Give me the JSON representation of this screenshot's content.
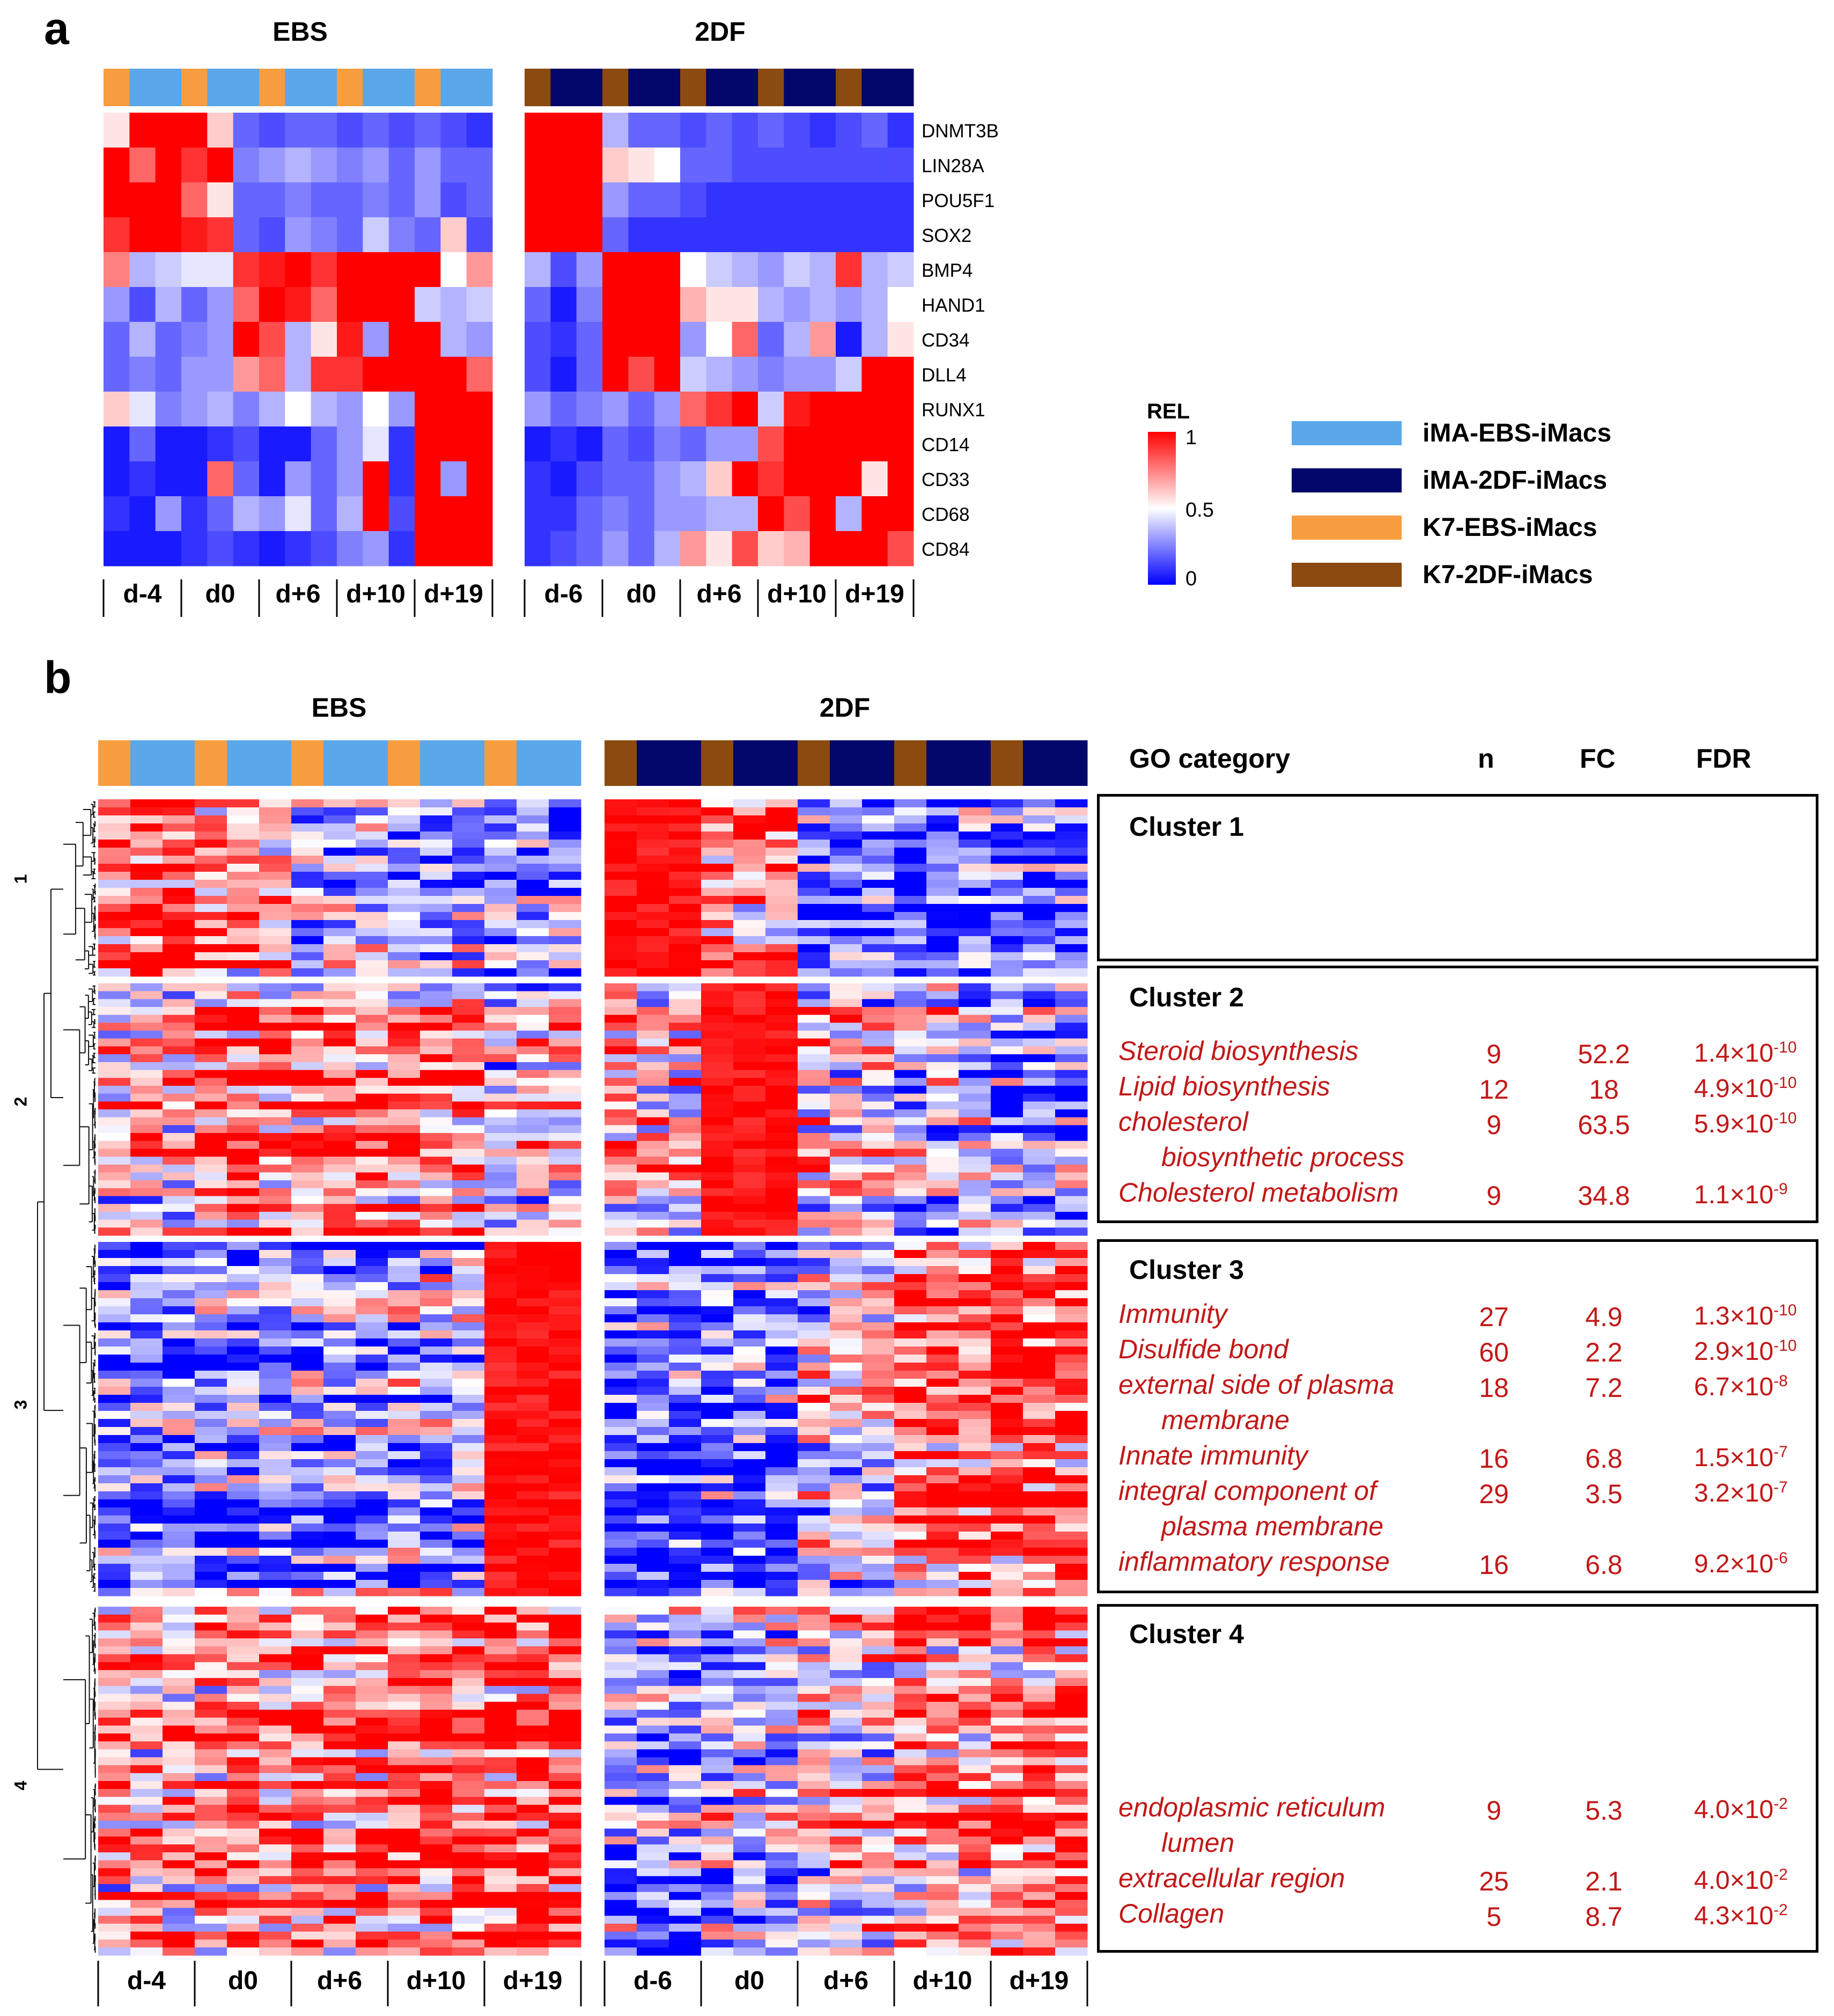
{
  "panel_a": {
    "letter": "a",
    "titles": {
      "ebs": "EBS",
      "twodf": "2DF"
    },
    "ebs_ticks": [
      "d-4",
      "d0",
      "d+6",
      "d+10",
      "d+19"
    ],
    "twodf_ticks": [
      "d-6",
      "d0",
      "d+6",
      "d+10",
      "d+19"
    ]
  },
  "panel_b": {
    "letter": "b",
    "titles": {
      "ebs": "EBS",
      "twodf": "2DF"
    },
    "ebs_ticks": [
      "d-4",
      "d0",
      "d+6",
      "d+10",
      "d+19"
    ],
    "twodf_ticks": [
      "d-6",
      "d0",
      "d+6",
      "d+10",
      "d+19"
    ],
    "cluster_labels": [
      "1",
      "2",
      "3",
      "4"
    ]
  },
  "colorbar": {
    "title": "REL",
    "ticks": [
      "1",
      "0.5",
      "0"
    ],
    "colors": [
      "#ff0000",
      "#ffffff",
      "#0000ff"
    ]
  },
  "legend": [
    {
      "label": "iMA-EBS-iMacs",
      "color": "#5aa7ea"
    },
    {
      "label": "iMA-2DF-iMacs",
      "color": "#03066a"
    },
    {
      "label": "K7-EBS-iMacs",
      "color": "#f89d40"
    },
    {
      "label": "K7-2DF-iMacs",
      "color": "#8b4a10"
    }
  ],
  "go_table": {
    "headers": {
      "category": "GO category",
      "n": "n",
      "fc": "FC",
      "fdr": "FDR"
    },
    "clusters": [
      {
        "title": "Cluster 1",
        "terms": []
      },
      {
        "title": "Cluster 2",
        "terms": [
          {
            "name": "Steroid biosynthesis",
            "n": "9",
            "fc": "52.2",
            "fdr_base": "1.4",
            "fdr_times": "×10",
            "fdr_exp": "-10"
          },
          {
            "name": "Lipid biosynthesis",
            "n": "12",
            "fc": "18",
            "fdr_base": "4.9",
            "fdr_times": "×10",
            "fdr_exp": "-10"
          },
          {
            "name": "cholesterol",
            "name2": "biosynthetic process",
            "n": "9",
            "fc": "63.5",
            "fdr_base": "5.9",
            "fdr_times": "×10",
            "fdr_exp": "-10"
          },
          {
            "name": "Cholesterol metabolism",
            "n": "9",
            "fc": "34.8",
            "fdr_base": "1.1",
            "fdr_times": "×10",
            "fdr_exp": "-9"
          }
        ]
      },
      {
        "title": "Cluster 3",
        "terms": [
          {
            "name": "Immunity",
            "n": "27",
            "fc": "4.9",
            "fdr_base": "1.3",
            "fdr_times": "×10",
            "fdr_exp": "-10"
          },
          {
            "name": "Disulfide bond",
            "n": "60",
            "fc": "2.2",
            "fdr_base": "2.9",
            "fdr_times": "×10",
            "fdr_exp": "-10"
          },
          {
            "name": "external side of plasma",
            "name2": "membrane",
            "n": "18",
            "fc": "7.2",
            "fdr_base": "6.7",
            "fdr_times": "×10",
            "fdr_exp": "-8"
          },
          {
            "name": "Innate immunity",
            "n": "16",
            "fc": "6.8",
            "fdr_base": "1.5",
            "fdr_times": "×10",
            "fdr_exp": "-7"
          },
          {
            "name": "integral component of",
            "name2": "plasma membrane",
            "n": "29",
            "fc": "3.5",
            "fdr_base": "3.2",
            "fdr_times": "×10",
            "fdr_exp": "-7"
          },
          {
            "name": "inflammatory response",
            "n": "16",
            "fc": "6.8",
            "fdr_base": "9.2",
            "fdr_times": "×10",
            "fdr_exp": "-6"
          }
        ]
      },
      {
        "title": "Cluster 4",
        "terms": [
          {
            "name": "endoplasmic reticulum",
            "name2": "lumen",
            "n": "9",
            "fc": "5.3",
            "fdr_base": "4.0",
            "fdr_times": "×10",
            "fdr_exp": "-2"
          },
          {
            "name": "extracellular region",
            "n": "25",
            "fc": "2.1",
            "fdr_base": "4.0",
            "fdr_times": "×10",
            "fdr_exp": "-2"
          },
          {
            "name": "Collagen",
            "n": "5",
            "fc": "8.7",
            "fdr_base": "4.3",
            "fdr_times": "×10",
            "fdr_exp": "-2"
          }
        ]
      }
    ]
  },
  "chart_data": [
    {
      "type": "heatmap",
      "panel": "a",
      "color_scale": "REL (0 = blue, 0.5 = white, 1 = red)",
      "genes": [
        "DNMT3B",
        "LIN28A",
        "POU5F1",
        "SOX2",
        "BMP4",
        "HAND1",
        "CD34",
        "DLL4",
        "RUNX1",
        "CD14",
        "CD33",
        "CD68",
        "CD84"
      ],
      "ebs": {
        "column_lines": [
          "K7",
          "iMA",
          "iMA",
          "K7",
          "iMA",
          "iMA",
          "K7",
          "iMA",
          "iMA",
          "K7",
          "iMA",
          "iMA",
          "K7",
          "iMA",
          "iMA"
        ],
        "column_times": [
          "d-4",
          "d-4",
          "d-4",
          "d0",
          "d0",
          "d0",
          "d+6",
          "d+6",
          "d+6",
          "d+10",
          "d+10",
          "d+10",
          "d+19",
          "d+19",
          "d+19"
        ],
        "values": [
          [
            0.55,
            1.0,
            1.0,
            1.0,
            0.6,
            0.2,
            0.15,
            0.2,
            0.2,
            0.15,
            0.2,
            0.15,
            0.2,
            0.15,
            0.1
          ],
          [
            1.0,
            0.8,
            1.0,
            0.9,
            1.0,
            0.25,
            0.3,
            0.35,
            0.3,
            0.25,
            0.3,
            0.2,
            0.3,
            0.2,
            0.2
          ],
          [
            1.0,
            1.0,
            1.0,
            0.8,
            0.55,
            0.2,
            0.2,
            0.25,
            0.2,
            0.2,
            0.25,
            0.2,
            0.3,
            0.15,
            0.2
          ],
          [
            0.9,
            1.0,
            1.0,
            0.95,
            0.9,
            0.2,
            0.15,
            0.3,
            0.25,
            0.2,
            0.4,
            0.25,
            0.2,
            0.6,
            0.15
          ],
          [
            0.75,
            0.35,
            0.4,
            0.45,
            0.45,
            0.9,
            0.95,
            1.0,
            0.9,
            1.0,
            1.0,
            1.0,
            1.0,
            0.5,
            0.7
          ],
          [
            0.3,
            0.15,
            0.35,
            0.2,
            0.3,
            0.8,
            1.0,
            0.95,
            0.8,
            1.0,
            1.0,
            1.0,
            0.4,
            0.35,
            0.4
          ],
          [
            0.2,
            0.35,
            0.2,
            0.25,
            0.3,
            1.0,
            0.85,
            0.35,
            0.55,
            0.95,
            0.3,
            1.0,
            1.0,
            0.35,
            0.3
          ],
          [
            0.2,
            0.25,
            0.2,
            0.3,
            0.3,
            0.7,
            0.8,
            0.35,
            0.9,
            0.9,
            1.0,
            1.0,
            1.0,
            1.0,
            0.8
          ],
          [
            0.6,
            0.45,
            0.25,
            0.3,
            0.35,
            0.25,
            0.35,
            0.5,
            0.35,
            0.3,
            0.5,
            0.3,
            1.0,
            1.0,
            1.0
          ],
          [
            0.05,
            0.2,
            0.05,
            0.05,
            0.1,
            0.15,
            0.05,
            0.05,
            0.2,
            0.3,
            0.45,
            0.1,
            1.0,
            1.0,
            1.0
          ],
          [
            0.05,
            0.1,
            0.05,
            0.05,
            0.8,
            0.2,
            0.05,
            0.3,
            0.2,
            0.3,
            1.0,
            0.1,
            1.0,
            0.3,
            1.0
          ],
          [
            0.1,
            0.05,
            0.3,
            0.1,
            0.2,
            0.35,
            0.3,
            0.45,
            0.2,
            0.35,
            1.0,
            0.15,
            1.0,
            1.0,
            1.0
          ],
          [
            0.05,
            0.05,
            0.05,
            0.1,
            0.15,
            0.1,
            0.05,
            0.1,
            0.15,
            0.25,
            0.3,
            0.1,
            1.0,
            1.0,
            1.0
          ]
        ]
      },
      "twodf": {
        "column_lines": [
          "K7",
          "iMA",
          "iMA",
          "K7",
          "iMA",
          "iMA",
          "K7",
          "iMA",
          "iMA",
          "K7",
          "iMA",
          "iMA",
          "K7",
          "iMA",
          "iMA"
        ],
        "column_times": [
          "d-6",
          "d-6",
          "d-6",
          "d0",
          "d0",
          "d0",
          "d+6",
          "d+6",
          "d+6",
          "d+10",
          "d+10",
          "d+10",
          "d+19",
          "d+19",
          "d+19"
        ],
        "values": [
          [
            1.0,
            1.0,
            1.0,
            0.35,
            0.2,
            0.2,
            0.15,
            0.2,
            0.15,
            0.2,
            0.15,
            0.1,
            0.15,
            0.2,
            0.1
          ],
          [
            1.0,
            1.0,
            1.0,
            0.6,
            0.55,
            0.5,
            0.2,
            0.2,
            0.15,
            0.15,
            0.15,
            0.15,
            0.15,
            0.15,
            0.15
          ],
          [
            1.0,
            1.0,
            1.0,
            0.3,
            0.2,
            0.2,
            0.15,
            0.1,
            0.1,
            0.1,
            0.1,
            0.1,
            0.1,
            0.1,
            0.1
          ],
          [
            1.0,
            1.0,
            1.0,
            0.2,
            0.1,
            0.1,
            0.1,
            0.1,
            0.1,
            0.1,
            0.1,
            0.1,
            0.1,
            0.1,
            0.1
          ],
          [
            0.35,
            0.15,
            0.3,
            1.0,
            1.0,
            1.0,
            0.5,
            0.4,
            0.35,
            0.3,
            0.4,
            0.35,
            0.9,
            0.35,
            0.4
          ],
          [
            0.2,
            0.05,
            0.25,
            1.0,
            1.0,
            1.0,
            0.65,
            0.55,
            0.55,
            0.35,
            0.3,
            0.35,
            0.3,
            0.35,
            0.5
          ],
          [
            0.15,
            0.1,
            0.2,
            1.0,
            1.0,
            1.0,
            0.3,
            0.5,
            0.8,
            0.2,
            0.35,
            0.7,
            0.05,
            0.35,
            0.55
          ],
          [
            0.15,
            0.05,
            0.2,
            1.0,
            0.85,
            1.0,
            0.4,
            0.35,
            0.3,
            0.25,
            0.3,
            0.3,
            0.4,
            1.0,
            1.0
          ],
          [
            0.3,
            0.2,
            0.25,
            0.3,
            0.2,
            0.3,
            0.8,
            0.9,
            1.0,
            0.4,
            0.95,
            1.0,
            1.0,
            1.0,
            1.0
          ],
          [
            0.05,
            0.1,
            0.05,
            0.2,
            0.15,
            0.25,
            0.2,
            0.3,
            0.3,
            0.85,
            1.0,
            1.0,
            1.0,
            1.0,
            1.0
          ],
          [
            0.1,
            0.05,
            0.15,
            0.2,
            0.2,
            0.3,
            0.35,
            0.6,
            1.0,
            0.9,
            1.0,
            1.0,
            1.0,
            0.55,
            1.0
          ],
          [
            0.1,
            0.1,
            0.2,
            0.25,
            0.2,
            0.3,
            0.3,
            0.35,
            0.35,
            1.0,
            0.85,
            1.0,
            0.35,
            1.0,
            1.0
          ],
          [
            0.1,
            0.15,
            0.2,
            0.3,
            0.2,
            0.35,
            0.7,
            0.55,
            0.85,
            0.6,
            0.65,
            1.0,
            1.0,
            1.0,
            0.85
          ]
        ]
      }
    },
    {
      "type": "heatmap",
      "panel": "b",
      "description": "Hierarchically clustered gene expression heatmap; individual gene rows are not labeled",
      "color_scale": "REL (0 = blue, 0.5 = white, 1 = red)",
      "column_groups": {
        "ebs": [
          "d-4",
          "d0",
          "d+6",
          "d+10",
          "d+19"
        ],
        "twodf": [
          "d-6",
          "d0",
          "d+6",
          "d+10",
          "d+19"
        ]
      },
      "clusters": [
        "1",
        "2",
        "3",
        "4"
      ]
    }
  ]
}
